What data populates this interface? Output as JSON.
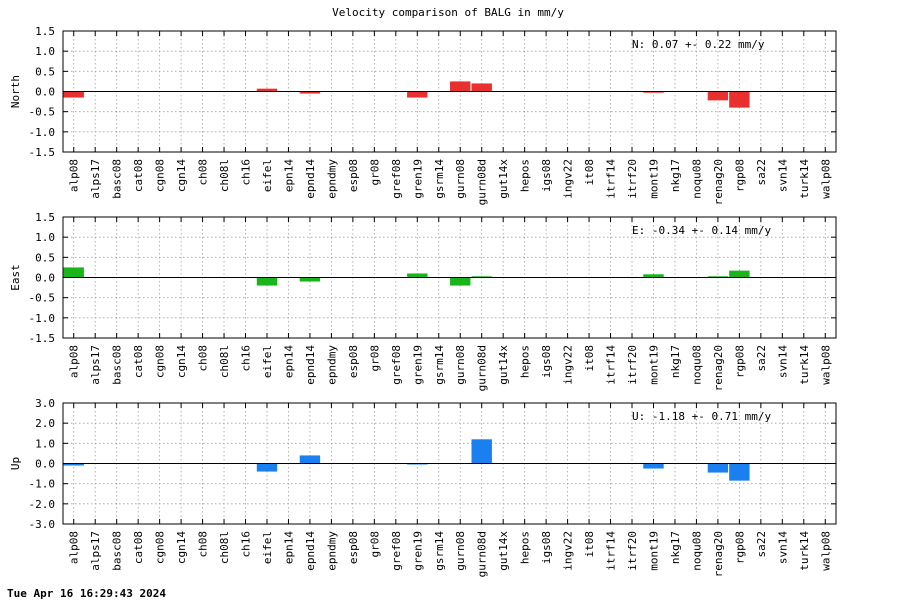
{
  "title": "Velocity comparison of BALG in mm/y",
  "footer": "Tue Apr 16 16:29:43 2024",
  "chart_data": [
    {
      "type": "bar",
      "ylabel": "North",
      "annotation": "N:   0.07 +-  0.22 mm/y",
      "color": "#e8302e",
      "ylim": [
        -1.5,
        1.5
      ],
      "yticks": [
        -1.5,
        -1.0,
        -0.5,
        0.0,
        0.5,
        1.0,
        1.5
      ],
      "ytick_labels": [
        "-1.5",
        "-1.0",
        "-0.5",
        "0.0",
        "0.5",
        "1.0",
        "1.5"
      ],
      "grid": true,
      "categories": [
        "alp08",
        "alps17",
        "basc08",
        "cat08",
        "cgn08",
        "cgn14",
        "ch08",
        "ch08l",
        "ch16",
        "eifel",
        "epn14",
        "epnd14",
        "epndmy",
        "esp08",
        "gr08",
        "gref08",
        "gren19",
        "gsrm14",
        "gurn08",
        "gurn08d",
        "gut14x",
        "hepos",
        "igs08",
        "ingv22",
        "it08",
        "itrf14",
        "itrf20",
        "mont19",
        "nkg17",
        "noqu08",
        "renag20",
        "rgp08",
        "sa22",
        "svn14",
        "turk14",
        "walp08"
      ],
      "values": [
        -0.15,
        0,
        0,
        0,
        0,
        0,
        0,
        0,
        0,
        0.07,
        0,
        -0.05,
        0,
        0,
        0,
        0,
        -0.15,
        0,
        0.25,
        0.2,
        0,
        0,
        0,
        0,
        0,
        0,
        0,
        -0.03,
        0,
        0,
        -0.22,
        -0.4,
        0,
        0,
        0,
        0
      ]
    },
    {
      "type": "bar",
      "ylabel": "East",
      "annotation": "E:  -0.34 +-  0.14 mm/y",
      "color": "#1ab51a",
      "ylim": [
        -1.5,
        1.5
      ],
      "yticks": [
        -1.5,
        -1.0,
        -0.5,
        0.0,
        0.5,
        1.0,
        1.5
      ],
      "ytick_labels": [
        "-1.5",
        "-1.0",
        "-0.5",
        "0.0",
        "0.5",
        "1.0",
        "1.5"
      ],
      "grid": true,
      "categories": [
        "alp08",
        "alps17",
        "basc08",
        "cat08",
        "cgn08",
        "cgn14",
        "ch08",
        "ch08l",
        "ch16",
        "eifel",
        "epn14",
        "epnd14",
        "epndmy",
        "esp08",
        "gr08",
        "gref08",
        "gren19",
        "gsrm14",
        "gurn08",
        "gurn08d",
        "gut14x",
        "hepos",
        "igs08",
        "ingv22",
        "it08",
        "itrf14",
        "itrf20",
        "mont19",
        "nkg17",
        "noqu08",
        "renag20",
        "rgp08",
        "sa22",
        "svn14",
        "turk14",
        "walp08"
      ],
      "values": [
        0.25,
        0,
        0,
        0,
        0,
        0,
        0,
        0,
        0,
        -0.2,
        0,
        -0.1,
        0,
        0,
        0,
        0,
        0.1,
        0,
        -0.2,
        0.03,
        0,
        0,
        0,
        0,
        0,
        0,
        0,
        0.08,
        0,
        0,
        0.03,
        0.17,
        0,
        0,
        0,
        0
      ]
    },
    {
      "type": "bar",
      "ylabel": "Up",
      "annotation": "U:  -1.18 +-  0.71 mm/y",
      "color": "#1a80f0",
      "ylim": [
        -3.0,
        3.0
      ],
      "yticks": [
        -3.0,
        -2.0,
        -1.0,
        0.0,
        1.0,
        2.0,
        3.0
      ],
      "ytick_labels": [
        "-3.0",
        "-2.0",
        "-1.0",
        "0.0",
        "1.0",
        "2.0",
        "3.0"
      ],
      "grid": true,
      "categories": [
        "alp08",
        "alps17",
        "basc08",
        "cat08",
        "cgn08",
        "cgn14",
        "ch08",
        "ch08l",
        "ch16",
        "eifel",
        "epn14",
        "epnd14",
        "epndmy",
        "esp08",
        "gr08",
        "gref08",
        "gren19",
        "gsrm14",
        "gurn08",
        "gurn08d",
        "gut14x",
        "hepos",
        "igs08",
        "ingv22",
        "it08",
        "itrf14",
        "itrf20",
        "mont19",
        "nkg17",
        "noqu08",
        "renag20",
        "rgp08",
        "sa22",
        "svn14",
        "turk14",
        "walp08"
      ],
      "values": [
        -0.1,
        0,
        0,
        0,
        0,
        0,
        0,
        0,
        0,
        -0.4,
        0,
        0.4,
        0,
        0,
        0,
        0,
        -0.05,
        0,
        0,
        1.2,
        0,
        0,
        0,
        0,
        0,
        0,
        0,
        -0.25,
        0,
        0,
        -0.45,
        -0.85,
        0,
        0,
        0,
        0
      ]
    }
  ]
}
